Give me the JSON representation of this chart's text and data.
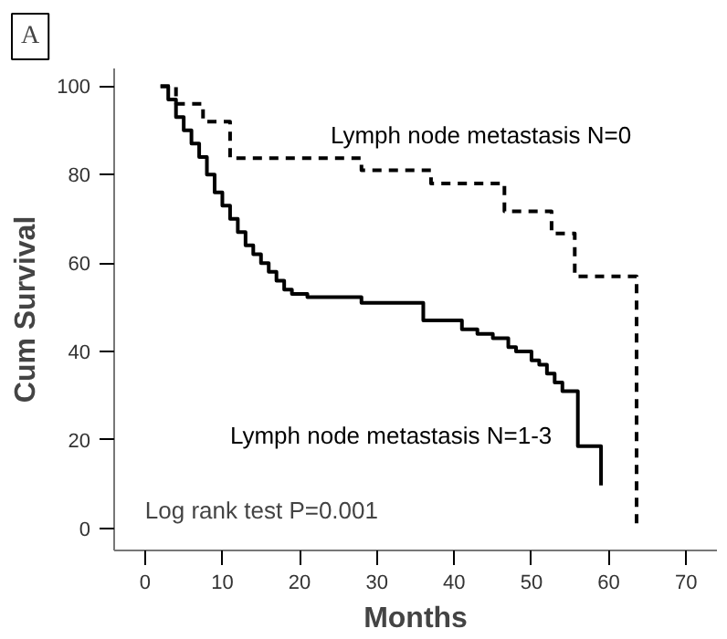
{
  "chart_data": {
    "type": "step",
    "xlabel": "Months",
    "ylabel": "Cum Survival",
    "xlim": [
      -4,
      74
    ],
    "xticks": [
      0,
      10,
      20,
      30,
      40,
      50,
      60,
      70
    ],
    "ylim": [
      -5,
      104
    ],
    "yticks": [
      0,
      20,
      40,
      60,
      80,
      100
    ],
    "grid": false,
    "annotations": [
      "A",
      "Log rank test P=0.001"
    ],
    "series": [
      {
        "name": "Lymph node metastasis N=0",
        "color": "#000000",
        "line_style": "dashed",
        "x": [
          2,
          4,
          7.5,
          11,
          28,
          37,
          46.5,
          52.6,
          55.6,
          63.6
        ],
        "values": [
          100,
          96,
          92,
          83.7,
          81,
          78,
          71.7,
          66.7,
          57,
          0
        ]
      },
      {
        "name": "Lymph node metastasis N=1-3",
        "color": "#000000",
        "line_style": "solid",
        "x": [
          2,
          3,
          4,
          5,
          6,
          7,
          8,
          9,
          10,
          11,
          12,
          13,
          14,
          15,
          16,
          17,
          18,
          19,
          21,
          28,
          36,
          41,
          43,
          45,
          47,
          48,
          50,
          51,
          52,
          53,
          54,
          56,
          59
        ],
        "values": [
          100,
          97,
          93,
          90,
          87,
          84,
          80,
          76,
          73,
          70,
          67,
          64,
          62,
          60,
          58,
          56,
          54,
          53,
          52.3,
          51,
          47,
          45,
          44,
          43,
          41,
          40,
          38,
          37,
          35,
          33,
          31,
          18.6,
          9.7
        ]
      }
    ]
  }
}
